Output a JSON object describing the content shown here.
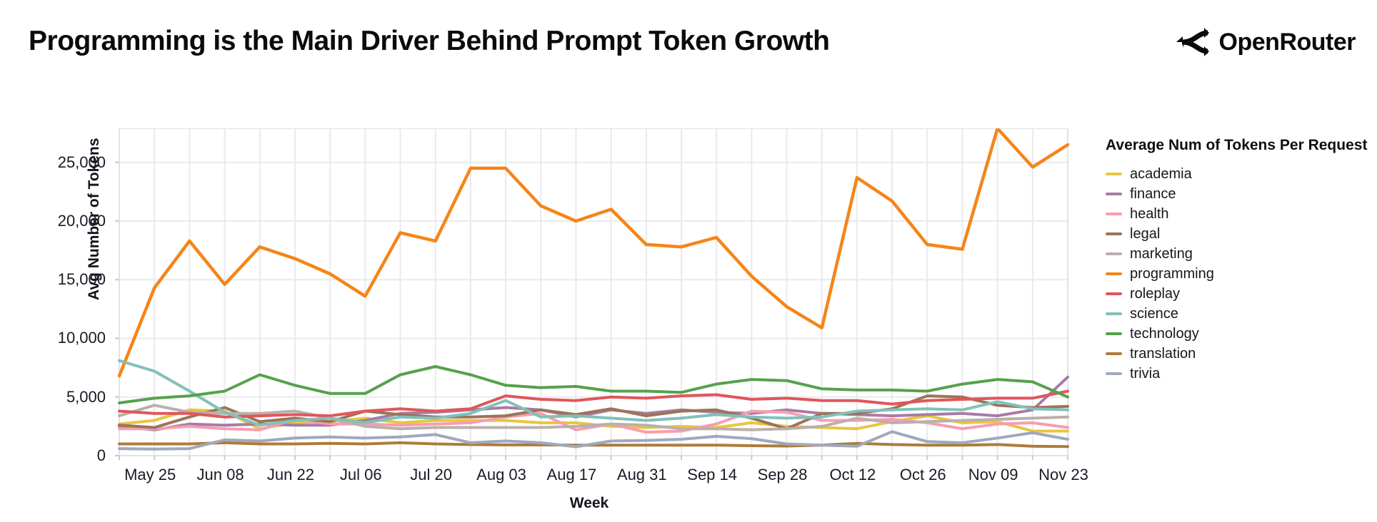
{
  "header": {
    "title": "Programming is the Main Driver Behind Prompt Token Growth",
    "brand": "OpenRouter"
  },
  "chart_data": {
    "type": "line",
    "xlabel": "Week",
    "ylabel": "Avg Number of Tokens",
    "legend_title": "Average Num of Tokens Per Request",
    "legend_position": "right",
    "grid": true,
    "ylim": [
      0,
      27900
    ],
    "y_ticks": [
      0,
      5000,
      10000,
      15000,
      20000,
      25000
    ],
    "y_tick_labels": [
      "0",
      "5,000",
      "10,000",
      "15,000",
      "20,000",
      "25,000"
    ],
    "x": [
      "May 18",
      "May 25",
      "Jun 01",
      "Jun 08",
      "Jun 15",
      "Jun 22",
      "Jun 29",
      "Jul 06",
      "Jul 13",
      "Jul 20",
      "Jul 27",
      "Aug 03",
      "Aug 10",
      "Aug 17",
      "Aug 24",
      "Aug 31",
      "Sep 07",
      "Sep 14",
      "Sep 21",
      "Sep 28",
      "Oct 05",
      "Oct 12",
      "Oct 19",
      "Oct 26",
      "Nov 02",
      "Nov 09",
      "Nov 16",
      "Nov 23"
    ],
    "x_tick_labels": [
      "May 25",
      "Jun 08",
      "Jun 22",
      "Jul 06",
      "Jul 20",
      "Aug 03",
      "Aug 17",
      "Aug 31",
      "Sep 14",
      "Sep 28",
      "Oct 12",
      "Oct 26",
      "Nov 09",
      "Nov 23"
    ],
    "x_tick_indices": [
      1,
      3,
      5,
      7,
      9,
      11,
      13,
      15,
      17,
      19,
      21,
      23,
      25,
      27
    ],
    "series": [
      {
        "name": "academia",
        "color": "#e8c63f",
        "values": [
          2700,
          3000,
          3900,
          3800,
          2300,
          2800,
          2900,
          3200,
          2800,
          3000,
          3000,
          3000,
          2800,
          2800,
          2500,
          2400,
          2500,
          2400,
          2800,
          2500,
          2400,
          2300,
          2900,
          3400,
          2800,
          2900,
          2100,
          2100
        ]
      },
      {
        "name": "finance",
        "color": "#a87ba6",
        "values": [
          2500,
          2200,
          2700,
          2600,
          2700,
          2600,
          2600,
          3000,
          3600,
          3700,
          3900,
          4100,
          3900,
          3300,
          3900,
          3600,
          3900,
          3700,
          3600,
          3900,
          3600,
          3500,
          3400,
          3500,
          3600,
          3400,
          3900,
          6700
        ]
      },
      {
        "name": "health",
        "color": "#f89db0",
        "values": [
          2300,
          2300,
          2500,
          2300,
          2200,
          3100,
          2700,
          2700,
          2600,
          2700,
          2800,
          3300,
          3600,
          2200,
          2700,
          2000,
          2100,
          2700,
          3800,
          3700,
          3000,
          3000,
          3100,
          2800,
          2300,
          2700,
          2800,
          2400
        ]
      },
      {
        "name": "legal",
        "color": "#9d7358",
        "values": [
          2600,
          2400,
          3300,
          4100,
          2900,
          3200,
          2900,
          3800,
          3500,
          3300,
          3300,
          3400,
          3900,
          3500,
          4000,
          3400,
          3800,
          3900,
          3200,
          2300,
          3600,
          3600,
          4000,
          5100,
          5000,
          4300,
          4100,
          4200
        ]
      },
      {
        "name": "marketing",
        "color": "#bab0ab",
        "values": [
          3400,
          4300,
          3700,
          3600,
          3600,
          3800,
          3200,
          2500,
          2300,
          2400,
          2400,
          2400,
          2400,
          2500,
          2700,
          2600,
          2300,
          2300,
          2200,
          2300,
          2500,
          3200,
          2800,
          2900,
          3000,
          3100,
          3200,
          3300
        ]
      },
      {
        "name": "programming",
        "color": "#f58518",
        "values": [
          6800,
          14300,
          18300,
          14600,
          17800,
          16800,
          15500,
          13600,
          19000,
          18300,
          24500,
          24500,
          21300,
          20000,
          21000,
          18000,
          17800,
          18600,
          15300,
          12700,
          10900,
          23700,
          21700,
          18000,
          17600,
          27900,
          24600,
          26500
        ]
      },
      {
        "name": "roleplay",
        "color": "#e0565b",
        "values": [
          3800,
          3600,
          3600,
          3300,
          3400,
          3500,
          3400,
          3800,
          4000,
          3800,
          4000,
          5100,
          4800,
          4700,
          5000,
          4900,
          5100,
          5200,
          4800,
          4900,
          4700,
          4700,
          4400,
          4700,
          4800,
          4900,
          4900,
          5500
        ]
      },
      {
        "name": "science",
        "color": "#80c1b9",
        "values": [
          8100,
          7200,
          5500,
          3700,
          2600,
          3000,
          3200,
          2800,
          3300,
          3200,
          3600,
          4700,
          3300,
          3400,
          3200,
          3000,
          3200,
          3500,
          3300,
          3200,
          3300,
          3800,
          3900,
          4000,
          3900,
          4600,
          4000,
          3900
        ]
      },
      {
        "name": "technology",
        "color": "#55a24b",
        "values": [
          4500,
          4900,
          5100,
          5500,
          6900,
          6000,
          5300,
          5300,
          6900,
          7600,
          6900,
          6000,
          5800,
          5900,
          5500,
          5500,
          5400,
          6100,
          6500,
          6400,
          5700,
          5600,
          5600,
          5500,
          6100,
          6500,
          6300,
          5000
        ]
      },
      {
        "name": "translation",
        "color": "#ae7b3a",
        "values": [
          1000,
          1000,
          1000,
          1100,
          1000,
          1000,
          1050,
          1000,
          1100,
          1000,
          950,
          920,
          920,
          900,
          900,
          900,
          900,
          900,
          850,
          820,
          900,
          1050,
          950,
          900,
          900,
          950,
          800,
          780
        ]
      },
      {
        "name": "trivia",
        "color": "#a0a8bd",
        "values": [
          600,
          560,
          600,
          1350,
          1250,
          1500,
          1600,
          1500,
          1600,
          1800,
          1100,
          1250,
          1100,
          760,
          1250,
          1300,
          1400,
          1650,
          1450,
          1000,
          900,
          800,
          2050,
          1200,
          1100,
          1500,
          1950,
          1400
        ]
      }
    ],
    "style": {
      "grid_color": "#e9e9f0",
      "border_color": "#e2e2ea",
      "tick_color": "#c9c9d4"
    }
  }
}
